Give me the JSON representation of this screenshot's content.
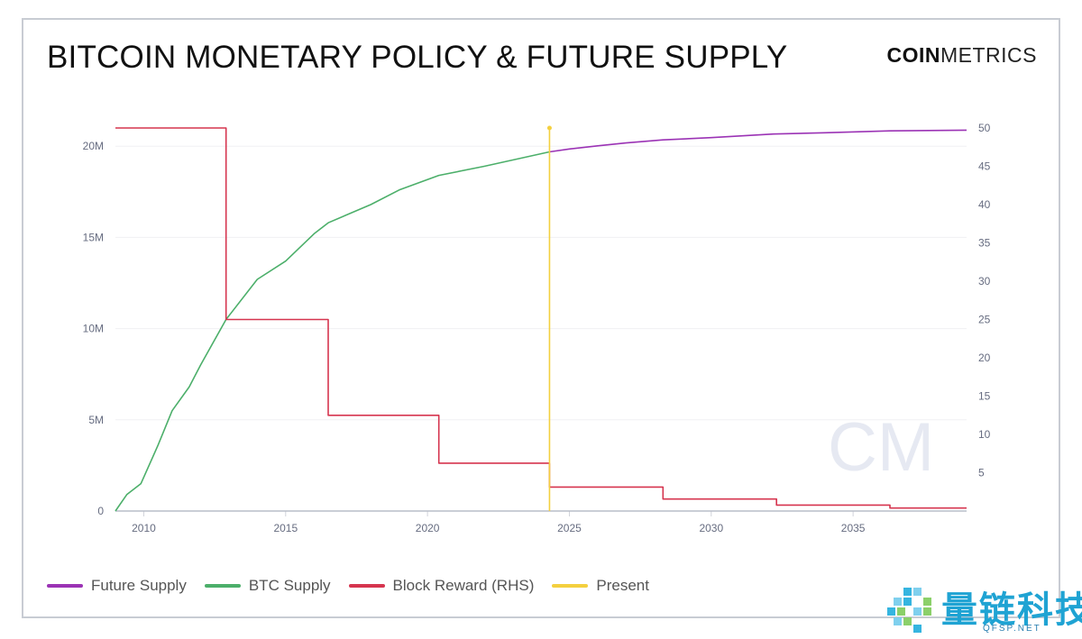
{
  "title": "BITCOIN MONETARY POLICY & FUTURE SUPPLY",
  "brand": {
    "bold": "COIN",
    "regular": "METRICS"
  },
  "watermark": {
    "text": "量链科技",
    "sub": "QFSP.NET"
  },
  "colors": {
    "future_supply": "#9b33b5",
    "btc_supply": "#4caf6a",
    "block_reward": "#d6354f",
    "present": "#f4d03f",
    "axis_text": "#666c80",
    "grid": "#f0f0f3"
  },
  "chart_data": {
    "type": "line",
    "xlabel": "",
    "ylabel": "",
    "y2label": "",
    "xlim": [
      2009.0,
      2039.0
    ],
    "ylim": [
      0,
      21000000
    ],
    "y2lim": [
      0,
      50
    ],
    "x_ticks": [
      {
        "value": 2010,
        "label": "2010"
      },
      {
        "value": 2015,
        "label": "2015"
      },
      {
        "value": 2020,
        "label": "2020"
      },
      {
        "value": 2025,
        "label": "2025"
      },
      {
        "value": 2030,
        "label": "2030"
      },
      {
        "value": 2035,
        "label": "2035"
      }
    ],
    "y_ticks": [
      {
        "value": 0,
        "label": "0"
      },
      {
        "value": 5000000,
        "label": "5M"
      },
      {
        "value": 10000000,
        "label": "10M"
      },
      {
        "value": 15000000,
        "label": "15M"
      },
      {
        "value": 20000000,
        "label": "20M"
      }
    ],
    "y2_ticks": [
      {
        "value": 5,
        "label": "5"
      },
      {
        "value": 10,
        "label": "10"
      },
      {
        "value": 15,
        "label": "15"
      },
      {
        "value": 20,
        "label": "20"
      },
      {
        "value": 25,
        "label": "25"
      },
      {
        "value": 30,
        "label": "30"
      },
      {
        "value": 35,
        "label": "35"
      },
      {
        "value": 40,
        "label": "40"
      },
      {
        "value": 45,
        "label": "45"
      },
      {
        "value": 50,
        "label": "50"
      }
    ],
    "grid": true,
    "legend_position": "bottom-left",
    "series": [
      {
        "name": "Future Supply",
        "axis": "left",
        "color_key": "future_supply",
        "x": [
          2024.3,
          2025,
          2026,
          2027,
          2028.3,
          2030,
          2032.2,
          2034,
          2036.3,
          2039.0
        ],
        "y": [
          19690000,
          19850000,
          20020000,
          20180000,
          20350000,
          20470000,
          20670000,
          20740000,
          20840000,
          20880000
        ]
      },
      {
        "name": "BTC Supply",
        "axis": "left",
        "color_key": "btc_supply",
        "x": [
          2009.0,
          2009.4,
          2009.9,
          2010.5,
          2011.0,
          2011.6,
          2012.0,
          2012.9,
          2014.0,
          2015.0,
          2016.0,
          2016.5,
          2018.0,
          2019.0,
          2020.4,
          2022.0,
          2024.3
        ],
        "y": [
          0,
          900000,
          1500000,
          3600000,
          5500000,
          6800000,
          8000000,
          10500000,
          12700000,
          13700000,
          15200000,
          15800000,
          16800000,
          17600000,
          18400000,
          18900000,
          19690000
        ]
      },
      {
        "name": "Block Reward (RHS)",
        "axis": "right",
        "color_key": "block_reward",
        "step": true,
        "x": [
          2009.0,
          2012.9,
          2012.9,
          2016.5,
          2016.5,
          2020.4,
          2020.4,
          2024.3,
          2024.3,
          2028.3,
          2028.3,
          2032.3,
          2032.3,
          2036.3,
          2036.3,
          2039.0
        ],
        "y": [
          50,
          50,
          25,
          25,
          12.5,
          12.5,
          6.25,
          6.25,
          3.125,
          3.125,
          1.5625,
          1.5625,
          0.78125,
          0.78125,
          0.39,
          0.39
        ]
      }
    ],
    "present": {
      "name": "Present",
      "x": 2024.3,
      "y2_top": 50
    },
    "legend": [
      "Future Supply",
      "BTC Supply",
      "Block Reward (RHS)",
      "Present"
    ]
  }
}
